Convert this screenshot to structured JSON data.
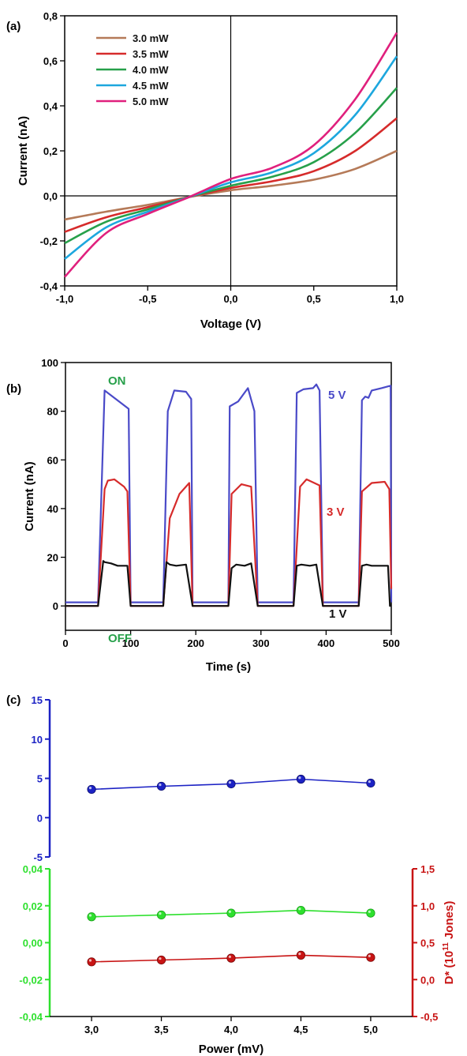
{
  "chart_data": [
    {
      "type": "line",
      "panel_label": "(a)",
      "xlabel": "Voltage (V)",
      "ylabel": "Current (nA)",
      "xlim": [
        -1.0,
        1.0
      ],
      "ylim": [
        -0.4,
        0.8
      ],
      "x_ticks": [
        "-1,0",
        "-0,5",
        "0,0",
        "0,5",
        "1,0"
      ],
      "y_ticks": [
        "-0,4",
        "-0,2",
        "0,0",
        "0,2",
        "0,4",
        "0,6",
        "0,8"
      ],
      "legend_position": "top-left",
      "x": [
        -1.0,
        -0.75,
        -0.5,
        -0.25,
        0.0,
        0.25,
        0.5,
        0.75,
        1.0
      ],
      "series": [
        {
          "name": "3.0 mW",
          "color": "#b57a58",
          "values": [
            -0.105,
            -0.07,
            -0.04,
            -0.005,
            0.025,
            0.045,
            0.072,
            0.12,
            0.2
          ]
        },
        {
          "name": "3.5 mW",
          "color": "#d62b2b",
          "values": [
            -0.16,
            -0.095,
            -0.05,
            -0.005,
            0.035,
            0.065,
            0.11,
            0.2,
            0.345
          ]
        },
        {
          "name": "4.0 mW",
          "color": "#27a04a",
          "values": [
            -0.21,
            -0.115,
            -0.06,
            -0.005,
            0.045,
            0.085,
            0.15,
            0.28,
            0.48
          ]
        },
        {
          "name": "4.5 mW",
          "color": "#1da7de",
          "values": [
            -0.28,
            -0.14,
            -0.07,
            -0.005,
            0.06,
            0.105,
            0.19,
            0.36,
            0.62
          ]
        },
        {
          "name": "5.0 mW",
          "color": "#e0207d",
          "values": [
            -0.36,
            -0.165,
            -0.08,
            -0.005,
            0.075,
            0.125,
            0.225,
            0.43,
            0.725
          ]
        }
      ]
    },
    {
      "type": "line",
      "panel_label": "(b)",
      "xlabel": "Time (s)",
      "ylabel": "Current (nA)",
      "xlim": [
        0,
        500
      ],
      "ylim": [
        -10,
        100
      ],
      "x_ticks": [
        "0",
        "100",
        "200",
        "300",
        "400",
        "500"
      ],
      "y_ticks": [
        "0",
        "20",
        "40",
        "60",
        "80",
        "100"
      ],
      "annotations": [
        {
          "text": "ON",
          "color": "#27a04a"
        },
        {
          "text": "OFF",
          "color": "#27a04a"
        }
      ],
      "series": [
        {
          "name": "5 V",
          "color": "#4a4ac8",
          "x": [
            0,
            50,
            60,
            97,
            100,
            150,
            157,
            167,
            185,
            193,
            195,
            250,
            252,
            265,
            280,
            290,
            295,
            350,
            355,
            365,
            380,
            385,
            390,
            395,
            450,
            455,
            460,
            465,
            470,
            485,
            499,
            500
          ],
          "y": [
            1.5,
            1.5,
            88.5,
            81,
            1.5,
            1.5,
            80,
            88.5,
            88,
            85,
            1.5,
            1.5,
            82,
            84,
            89.5,
            80,
            1.5,
            1.5,
            87.5,
            89,
            89.5,
            91,
            88.5,
            1.5,
            1.5,
            84.5,
            86,
            85.5,
            88.5,
            89.5,
            90.5,
            1.5
          ]
        },
        {
          "name": "3 V",
          "color": "#d62b2b",
          "x": [
            0,
            50,
            60,
            65,
            75,
            90,
            95,
            100,
            150,
            160,
            175,
            190,
            195,
            250,
            255,
            270,
            285,
            295,
            350,
            360,
            370,
            390,
            395,
            450,
            455,
            470,
            490,
            497,
            500
          ],
          "y": [
            0,
            0,
            48,
            51.5,
            52,
            49,
            47,
            0,
            0,
            36,
            46,
            50.5,
            0,
            0,
            46,
            50,
            49,
            0,
            0,
            49,
            52,
            49.5,
            0,
            0,
            47,
            50.5,
            51,
            48,
            7
          ]
        },
        {
          "name": "1 V",
          "color": "#111111",
          "x": [
            0,
            50,
            58,
            60,
            70,
            80,
            95,
            100,
            150,
            155,
            160,
            170,
            185,
            195,
            250,
            255,
            262,
            275,
            285,
            295,
            350,
            355,
            362,
            375,
            385,
            395,
            450,
            455,
            462,
            470,
            495,
            498,
            500
          ],
          "y": [
            0,
            0,
            18.5,
            18,
            17.5,
            16.5,
            16.5,
            0,
            0,
            18,
            17,
            16.5,
            17,
            0,
            0,
            15.5,
            17,
            16.5,
            17.5,
            0,
            0,
            16.5,
            17,
            16.5,
            17,
            0,
            0,
            16.5,
            17,
            16.5,
            16.5,
            0,
            0.5
          ]
        }
      ]
    },
    {
      "type": "scatter",
      "panel_label": "(c)",
      "xlabel": "Power (mV)",
      "xlim": [
        2.7,
        5.3
      ],
      "x_ticks": [
        "3,0",
        "3,5",
        "4,0",
        "4,5",
        "5,0"
      ],
      "x": [
        3.0,
        3.5,
        4.0,
        4.5,
        5.0
      ],
      "top": {
        "ylim": [
          -5,
          15
        ],
        "y_ticks": [
          "-5",
          "0",
          "5",
          "10",
          "15"
        ],
        "series": [
          {
            "color": "#1c22c4",
            "values": [
              3.6,
              4.0,
              4.3,
              4.9,
              4.4
            ]
          }
        ]
      },
      "bottom": {
        "left_ylim": [
          -0.04,
          0.04
        ],
        "left_y_ticks": [
          "-0,04",
          "-0,02",
          "0,00",
          "0,02",
          "0,04"
        ],
        "right_ylim": [
          -0.5,
          1.5
        ],
        "right_y_ticks": [
          "-0,5",
          "0,0",
          "0,5",
          "1,0",
          "1,5"
        ],
        "right_ylabel_parts": [
          "D* (10",
          "11",
          " Jones)"
        ],
        "series": [
          {
            "axis": "left",
            "color": "#2ee02e",
            "values": [
              0.014,
              0.015,
              0.016,
              0.0175,
              0.016
            ]
          },
          {
            "axis": "right",
            "color": "#c81414",
            "values": [
              0.24,
              0.265,
              0.29,
              0.33,
              0.3
            ]
          }
        ]
      }
    }
  ]
}
